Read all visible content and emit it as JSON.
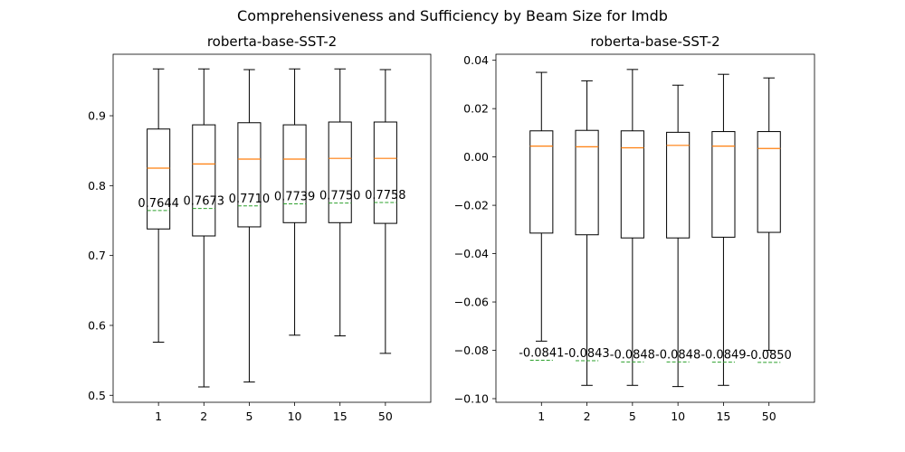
{
  "chart_data": {
    "title": "Comprehensiveness and Sufficiency by Beam Size for Imdb",
    "colors": {
      "median": "#ff7f0e",
      "mean": "#2ca02c",
      "box": "#000000"
    },
    "panels": [
      {
        "type": "box",
        "title": "roberta-base-SST-2",
        "categories": [
          "1",
          "2",
          "5",
          "10",
          "15",
          "50"
        ],
        "ylim": [
          0.49,
          0.988
        ],
        "yticks": [
          0.5,
          0.6,
          0.7,
          0.8,
          0.9
        ],
        "ytick_labels": [
          "0.5",
          "0.6",
          "0.7",
          "0.8",
          "0.9"
        ],
        "boxes": [
          {
            "whislo": 0.576,
            "q1": 0.738,
            "med": 0.825,
            "q3": 0.881,
            "whishi": 0.967
          },
          {
            "whislo": 0.512,
            "q1": 0.728,
            "med": 0.831,
            "q3": 0.887,
            "whishi": 0.967
          },
          {
            "whislo": 0.519,
            "q1": 0.741,
            "med": 0.838,
            "q3": 0.89,
            "whishi": 0.966
          },
          {
            "whislo": 0.586,
            "q1": 0.747,
            "med": 0.838,
            "q3": 0.887,
            "whishi": 0.967
          },
          {
            "whislo": 0.585,
            "q1": 0.747,
            "med": 0.839,
            "q3": 0.891,
            "whishi": 0.967
          },
          {
            "whislo": 0.56,
            "q1": 0.746,
            "med": 0.839,
            "q3": 0.891,
            "whishi": 0.966
          }
        ],
        "means": [
          0.7644,
          0.7673,
          0.771,
          0.7739,
          0.775,
          0.7758
        ],
        "mean_labels": [
          "0.7644",
          "0.7673",
          "0.7710",
          "0.7739",
          "0.7750",
          "0.7758"
        ]
      },
      {
        "type": "box",
        "title": "roberta-base-SST-2",
        "categories": [
          "1",
          "2",
          "5",
          "10",
          "15",
          "50"
        ],
        "ylim": [
          -0.1015,
          0.0425
        ],
        "yticks": [
          -0.1,
          -0.08,
          -0.06,
          -0.04,
          -0.02,
          0.0,
          0.02,
          0.04
        ],
        "ytick_labels": [
          "−0.10",
          "−0.08",
          "−0.06",
          "−0.04",
          "−0.02",
          "0.00",
          "0.02",
          "0.04"
        ],
        "boxes": [
          {
            "whislo": -0.0762,
            "q1": -0.0315,
            "med": 0.0045,
            "q3": 0.0108,
            "whishi": 0.035
          },
          {
            "whislo": -0.0945,
            "q1": -0.0322,
            "med": 0.0042,
            "q3": 0.011,
            "whishi": 0.0315
          },
          {
            "whislo": -0.0945,
            "q1": -0.0335,
            "med": 0.0038,
            "q3": 0.0108,
            "whishi": 0.0362
          },
          {
            "whislo": -0.095,
            "q1": -0.0335,
            "med": 0.0048,
            "q3": 0.0102,
            "whishi": 0.0297
          },
          {
            "whislo": -0.0945,
            "q1": -0.0332,
            "med": 0.0045,
            "q3": 0.0105,
            "whishi": 0.0342
          },
          {
            "whislo": -0.08,
            "q1": -0.0312,
            "med": 0.0035,
            "q3": 0.0105,
            "whishi": 0.0327
          }
        ],
        "means": [
          -0.0841,
          -0.0843,
          -0.0848,
          -0.0848,
          -0.0849,
          -0.085
        ],
        "mean_labels": [
          "-0.0841",
          "-0.0843",
          "-0.0848",
          "-0.0848",
          "-0.0849",
          "-0.0850"
        ]
      }
    ]
  }
}
